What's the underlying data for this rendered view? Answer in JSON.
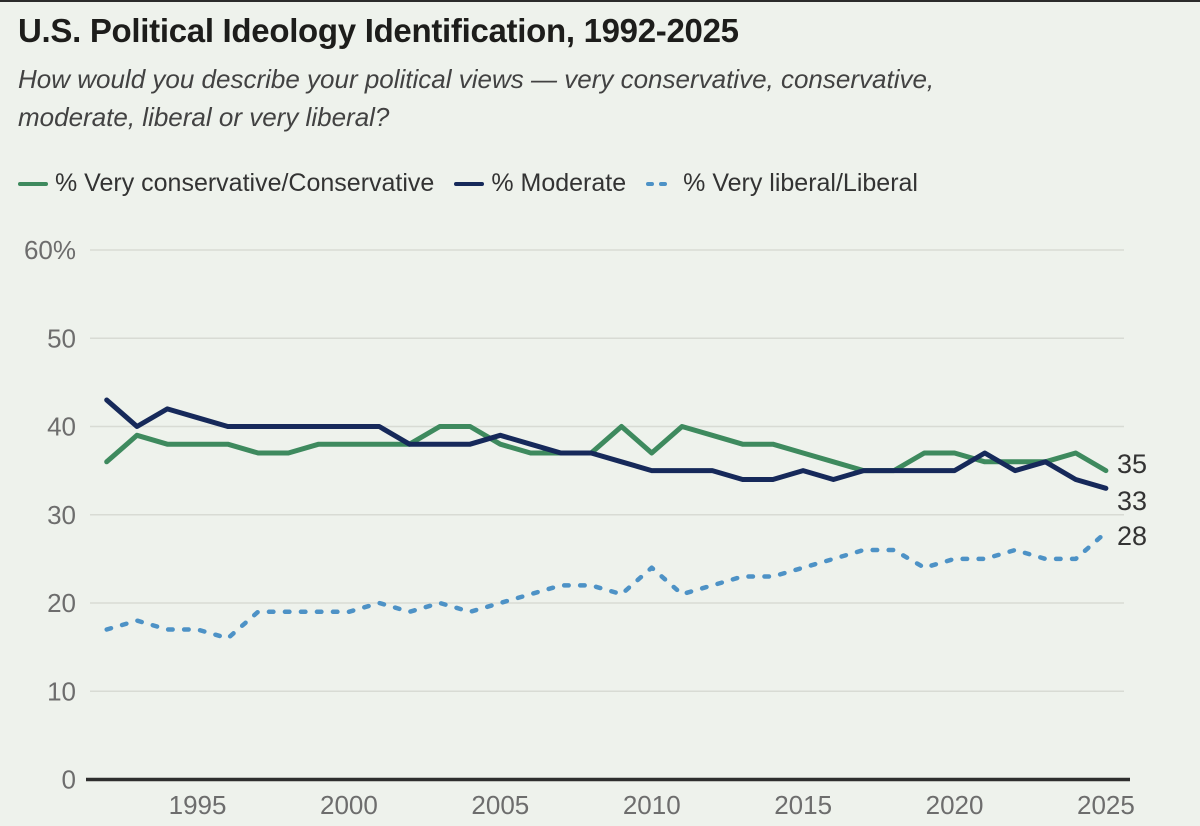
{
  "page": {
    "title": "U.S. Political Ideology Identification, 1992-2025",
    "subtitle_lines": [
      "How would you describe your political views — very conservative, conservative,",
      "moderate, liberal or very liberal?"
    ]
  },
  "legend": [
    {
      "label": "% Very conservative/Conservative",
      "color": "#3e8a5e",
      "dash": false
    },
    {
      "label": "% Moderate",
      "color": "#16295a",
      "dash": false
    },
    {
      "label": "% Very liberal/Liberal",
      "color": "#4d92c6",
      "dash": true
    }
  ],
  "colors": {
    "background": "#eef2ec",
    "grid": "#d8dbd4",
    "axis": "#2e2e2e",
    "tick_labels": "#6d6d6d",
    "end_labels": "#333333",
    "conservative": "#3e8a5e",
    "moderate": "#16295a",
    "liberal": "#4d92c6"
  },
  "chart_data": {
    "type": "line",
    "title": "U.S. Political Ideology Identification, 1992-2025",
    "xlabel": "",
    "ylabel": "",
    "xlim": [
      1992,
      2025
    ],
    "ylim": [
      0,
      60
    ],
    "grid": true,
    "legend_position": "top",
    "x": [
      1992,
      1993,
      1994,
      1995,
      1996,
      1997,
      1998,
      1999,
      2000,
      2001,
      2002,
      2003,
      2004,
      2005,
      2006,
      2007,
      2008,
      2009,
      2010,
      2011,
      2012,
      2013,
      2014,
      2015,
      2016,
      2017,
      2018,
      2019,
      2020,
      2021,
      2022,
      2023,
      2024,
      2025
    ],
    "x_ticks": [
      1995,
      2000,
      2005,
      2010,
      2015,
      2020,
      2025
    ],
    "y_ticks": [
      {
        "value": 60,
        "label": "60%"
      },
      {
        "value": 50,
        "label": "50"
      },
      {
        "value": 40,
        "label": "40"
      },
      {
        "value": 30,
        "label": "30"
      },
      {
        "value": 20,
        "label": "20"
      },
      {
        "value": 10,
        "label": "10"
      },
      {
        "value": 0,
        "label": "0"
      }
    ],
    "series": [
      {
        "name": "% Very conservative/Conservative",
        "color": "#3e8a5e",
        "dash": false,
        "end_label": "35",
        "values": [
          36,
          39,
          38,
          38,
          38,
          37,
          37,
          38,
          38,
          38,
          38,
          40,
          40,
          38,
          37,
          37,
          37,
          40,
          37,
          40,
          39,
          38,
          38,
          37,
          36,
          35,
          35,
          37,
          37,
          36,
          36,
          36,
          37,
          35
        ]
      },
      {
        "name": "% Moderate",
        "color": "#16295a",
        "dash": false,
        "end_label": "33",
        "values": [
          43,
          40,
          42,
          41,
          40,
          40,
          40,
          40,
          40,
          40,
          38,
          38,
          38,
          39,
          38,
          37,
          37,
          36,
          35,
          35,
          35,
          34,
          34,
          35,
          34,
          35,
          35,
          35,
          35,
          37,
          35,
          36,
          34,
          33
        ]
      },
      {
        "name": "% Very liberal/Liberal",
        "color": "#4d92c6",
        "dash": true,
        "end_label": "28",
        "values": [
          17,
          18,
          17,
          17,
          16,
          19,
          19,
          19,
          19,
          20,
          19,
          20,
          19,
          20,
          21,
          22,
          22,
          21,
          24,
          21,
          22,
          23,
          23,
          24,
          25,
          26,
          26,
          24,
          25,
          25,
          26,
          25,
          25,
          28
        ]
      }
    ]
  }
}
